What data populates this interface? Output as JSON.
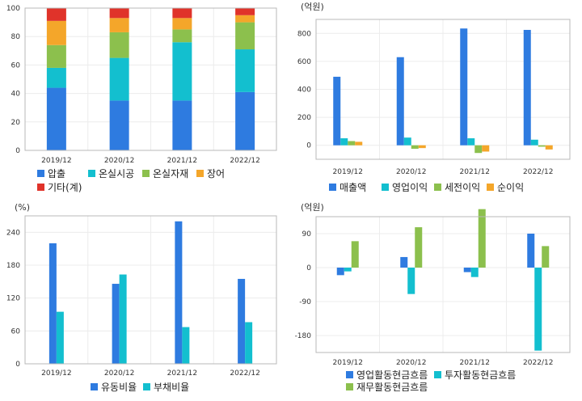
{
  "chart_data": [
    {
      "type": "bar",
      "stacked": true,
      "unit_label": "",
      "categories": [
        "2019/12",
        "2020/12",
        "2021/12",
        "2022/12"
      ],
      "ylim": [
        0,
        100
      ],
      "yticks": [
        "0",
        "20",
        "40",
        "60",
        "80",
        "100"
      ],
      "grid": true,
      "legend_position": "bottom",
      "series": [
        {
          "name": "압출",
          "color": "#2e7be0",
          "values": [
            44,
            35,
            35,
            41
          ]
        },
        {
          "name": "온실시공",
          "color": "#13bfcf",
          "values": [
            14,
            30,
            41,
            30
          ]
        },
        {
          "name": "온실자재",
          "color": "#8cc04d",
          "values": [
            16,
            18,
            9,
            19
          ]
        },
        {
          "name": "장어",
          "color": "#f4a62a",
          "values": [
            17,
            10,
            8,
            5
          ]
        },
        {
          "name": "기타(계)",
          "color": "#e0332a",
          "values": [
            9,
            7,
            7,
            5
          ]
        }
      ]
    },
    {
      "type": "bar",
      "unit_label": "(억원)",
      "categories": [
        "2019/12",
        "2020/12",
        "2021/12",
        "2022/12"
      ],
      "ylim": [
        -100,
        900
      ],
      "yticks": [
        "0",
        "200",
        "400",
        "600",
        "800"
      ],
      "grid": true,
      "legend_position": "bottom",
      "series": [
        {
          "name": "매출액",
          "color": "#2e7be0",
          "values": [
            490,
            630,
            835,
            825
          ]
        },
        {
          "name": "영업이익",
          "color": "#13bfcf",
          "values": [
            50,
            55,
            50,
            40
          ]
        },
        {
          "name": "세전이익",
          "color": "#8cc04d",
          "values": [
            30,
            -25,
            -55,
            -10
          ]
        },
        {
          "name": "순이익",
          "color": "#f4a62a",
          "values": [
            25,
            -20,
            -45,
            -30
          ]
        }
      ]
    },
    {
      "type": "bar",
      "unit_label": "(%)",
      "categories": [
        "2019/12",
        "2020/12",
        "2021/12",
        "2022/12"
      ],
      "ylim": [
        0,
        270
      ],
      "yticks": [
        "0",
        "60",
        "120",
        "180",
        "240"
      ],
      "grid": true,
      "legend_position": "bottom",
      "series": [
        {
          "name": "유동비율",
          "color": "#2e7be0",
          "values": [
            220,
            146,
            260,
            155
          ]
        },
        {
          "name": "부채비율",
          "color": "#13bfcf",
          "values": [
            95,
            163,
            67,
            76
          ]
        }
      ]
    },
    {
      "type": "bar",
      "unit_label": "(억원)",
      "categories": [
        "2019/12",
        "2020/12",
        "2021/12",
        "2022/12"
      ],
      "ylim": [
        -225,
        135
      ],
      "yticks": [
        "-180",
        "-90",
        "0",
        "90"
      ],
      "grid": true,
      "legend_position": "bottom",
      "series": [
        {
          "name": "영업활동현금흐름",
          "color": "#2e7be0",
          "values": [
            -20,
            28,
            -12,
            90
          ]
        },
        {
          "name": "투자활동현금흐름",
          "color": "#13bfcf",
          "values": [
            -10,
            -70,
            -25,
            -220
          ]
        },
        {
          "name": "재무활동현금흐름",
          "color": "#8cc04d",
          "values": [
            70,
            107,
            155,
            57
          ]
        }
      ]
    }
  ]
}
